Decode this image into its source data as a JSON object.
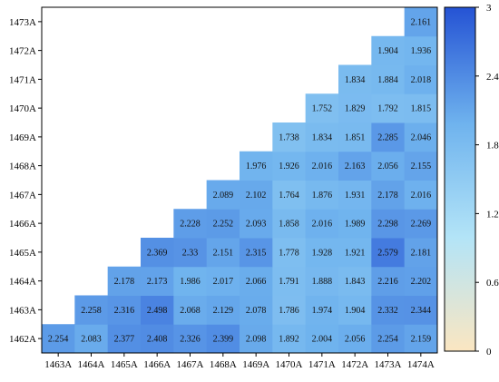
{
  "chart_data": {
    "type": "heatmap",
    "title": "",
    "xlabel": "",
    "ylabel": "",
    "x_categories": [
      "1463A",
      "1464A",
      "1465A",
      "1466A",
      "1467A",
      "1468A",
      "1469A",
      "1470A",
      "1471A",
      "1472A",
      "1473A",
      "1474A"
    ],
    "y_categories": [
      "1462A",
      "1463A",
      "1464A",
      "1465A",
      "1466A",
      "1467A",
      "1468A",
      "1469A",
      "1470A",
      "1471A",
      "1472A",
      "1473A"
    ],
    "values": [
      [
        2.254,
        2.083,
        2.377,
        2.408,
        2.326,
        2.399,
        2.098,
        1.892,
        2.004,
        2.056,
        2.254,
        2.159
      ],
      [
        null,
        2.258,
        2.316,
        2.498,
        2.068,
        2.129,
        2.078,
        1.786,
        1.974,
        1.904,
        2.332,
        2.344
      ],
      [
        null,
        null,
        2.178,
        2.173,
        1.986,
        2.017,
        2.066,
        1.791,
        1.888,
        1.843,
        2.216,
        2.202
      ],
      [
        null,
        null,
        null,
        2.369,
        2.33,
        2.151,
        2.315,
        1.778,
        1.928,
        1.921,
        2.579,
        2.181
      ],
      [
        null,
        null,
        null,
        null,
        2.228,
        2.252,
        2.093,
        1.858,
        2.016,
        1.989,
        2.298,
        2.269
      ],
      [
        null,
        null,
        null,
        null,
        null,
        2.089,
        2.102,
        1.764,
        1.876,
        1.931,
        2.178,
        2.016
      ],
      [
        null,
        null,
        null,
        null,
        null,
        null,
        1.976,
        1.926,
        2.016,
        2.163,
        2.056,
        2.155
      ],
      [
        null,
        null,
        null,
        null,
        null,
        null,
        null,
        1.738,
        1.834,
        1.851,
        2.285,
        2.046
      ],
      [
        null,
        null,
        null,
        null,
        null,
        null,
        null,
        null,
        1.752,
        1.829,
        1.792,
        1.815
      ],
      [
        null,
        null,
        null,
        null,
        null,
        null,
        null,
        null,
        null,
        1.834,
        1.884,
        2.018
      ],
      [
        null,
        null,
        null,
        null,
        null,
        null,
        null,
        null,
        null,
        null,
        1.904,
        1.936
      ],
      [
        null,
        null,
        null,
        null,
        null,
        null,
        null,
        null,
        null,
        null,
        null,
        2.161
      ]
    ],
    "value_labels": [
      [
        "2.254",
        "2.083",
        "2.377",
        "2.408",
        "2.326",
        "2.399",
        "2.098",
        "1.892",
        "2.004",
        "2.056",
        "2.254",
        "2.159"
      ],
      [
        null,
        "2.258",
        "2.316",
        "2.498",
        "2.068",
        "2.129",
        "2.078",
        "1.786",
        "1.974",
        "1.904",
        "2.332",
        "2.344"
      ],
      [
        null,
        null,
        "2.178",
        "2.173",
        "1.986",
        "2.017",
        "2.066",
        "1.791",
        "1.888",
        "1.843",
        "2.216",
        "2.202"
      ],
      [
        null,
        null,
        null,
        "2.369",
        "2.33",
        "2.151",
        "2.315",
        "1.778",
        "1.928",
        "1.921",
        "2.579",
        "2.181"
      ],
      [
        null,
        null,
        null,
        null,
        "2.228",
        "2.252",
        "2.093",
        "1.858",
        "2.016",
        "1.989",
        "2.298",
        "2.269"
      ],
      [
        null,
        null,
        null,
        null,
        null,
        "2.089",
        "2.102",
        "1.764",
        "1.876",
        "1.931",
        "2.178",
        "2.016"
      ],
      [
        null,
        null,
        null,
        null,
        null,
        null,
        "1.976",
        "1.926",
        "2.016",
        "2.163",
        "2.056",
        "2.155"
      ],
      [
        null,
        null,
        null,
        null,
        null,
        null,
        null,
        "1.738",
        "1.834",
        "1.851",
        "2.285",
        "2.046"
      ],
      [
        null,
        null,
        null,
        null,
        null,
        null,
        null,
        null,
        "1.752",
        "1.829",
        "1.792",
        "1.815"
      ],
      [
        null,
        null,
        null,
        null,
        null,
        null,
        null,
        null,
        null,
        "1.834",
        "1.884",
        "2.018"
      ],
      [
        null,
        null,
        null,
        null,
        null,
        null,
        null,
        null,
        null,
        null,
        "1.904",
        "1.936"
      ],
      [
        null,
        null,
        null,
        null,
        null,
        null,
        null,
        null,
        null,
        null,
        null,
        "2.161"
      ]
    ],
    "colorbar": {
      "range": [
        0,
        3
      ],
      "ticks": [
        0,
        0.6,
        1.2,
        1.8,
        2.4,
        3
      ],
      "tick_labels": [
        "0",
        "0.6",
        "1.2",
        "1.8",
        "2.4",
        "3"
      ],
      "colors": [
        "#fbe6c1",
        "#b3e4f7",
        "#6fb3ee",
        "#2553d4"
      ]
    },
    "grid": false,
    "legend": "right"
  }
}
